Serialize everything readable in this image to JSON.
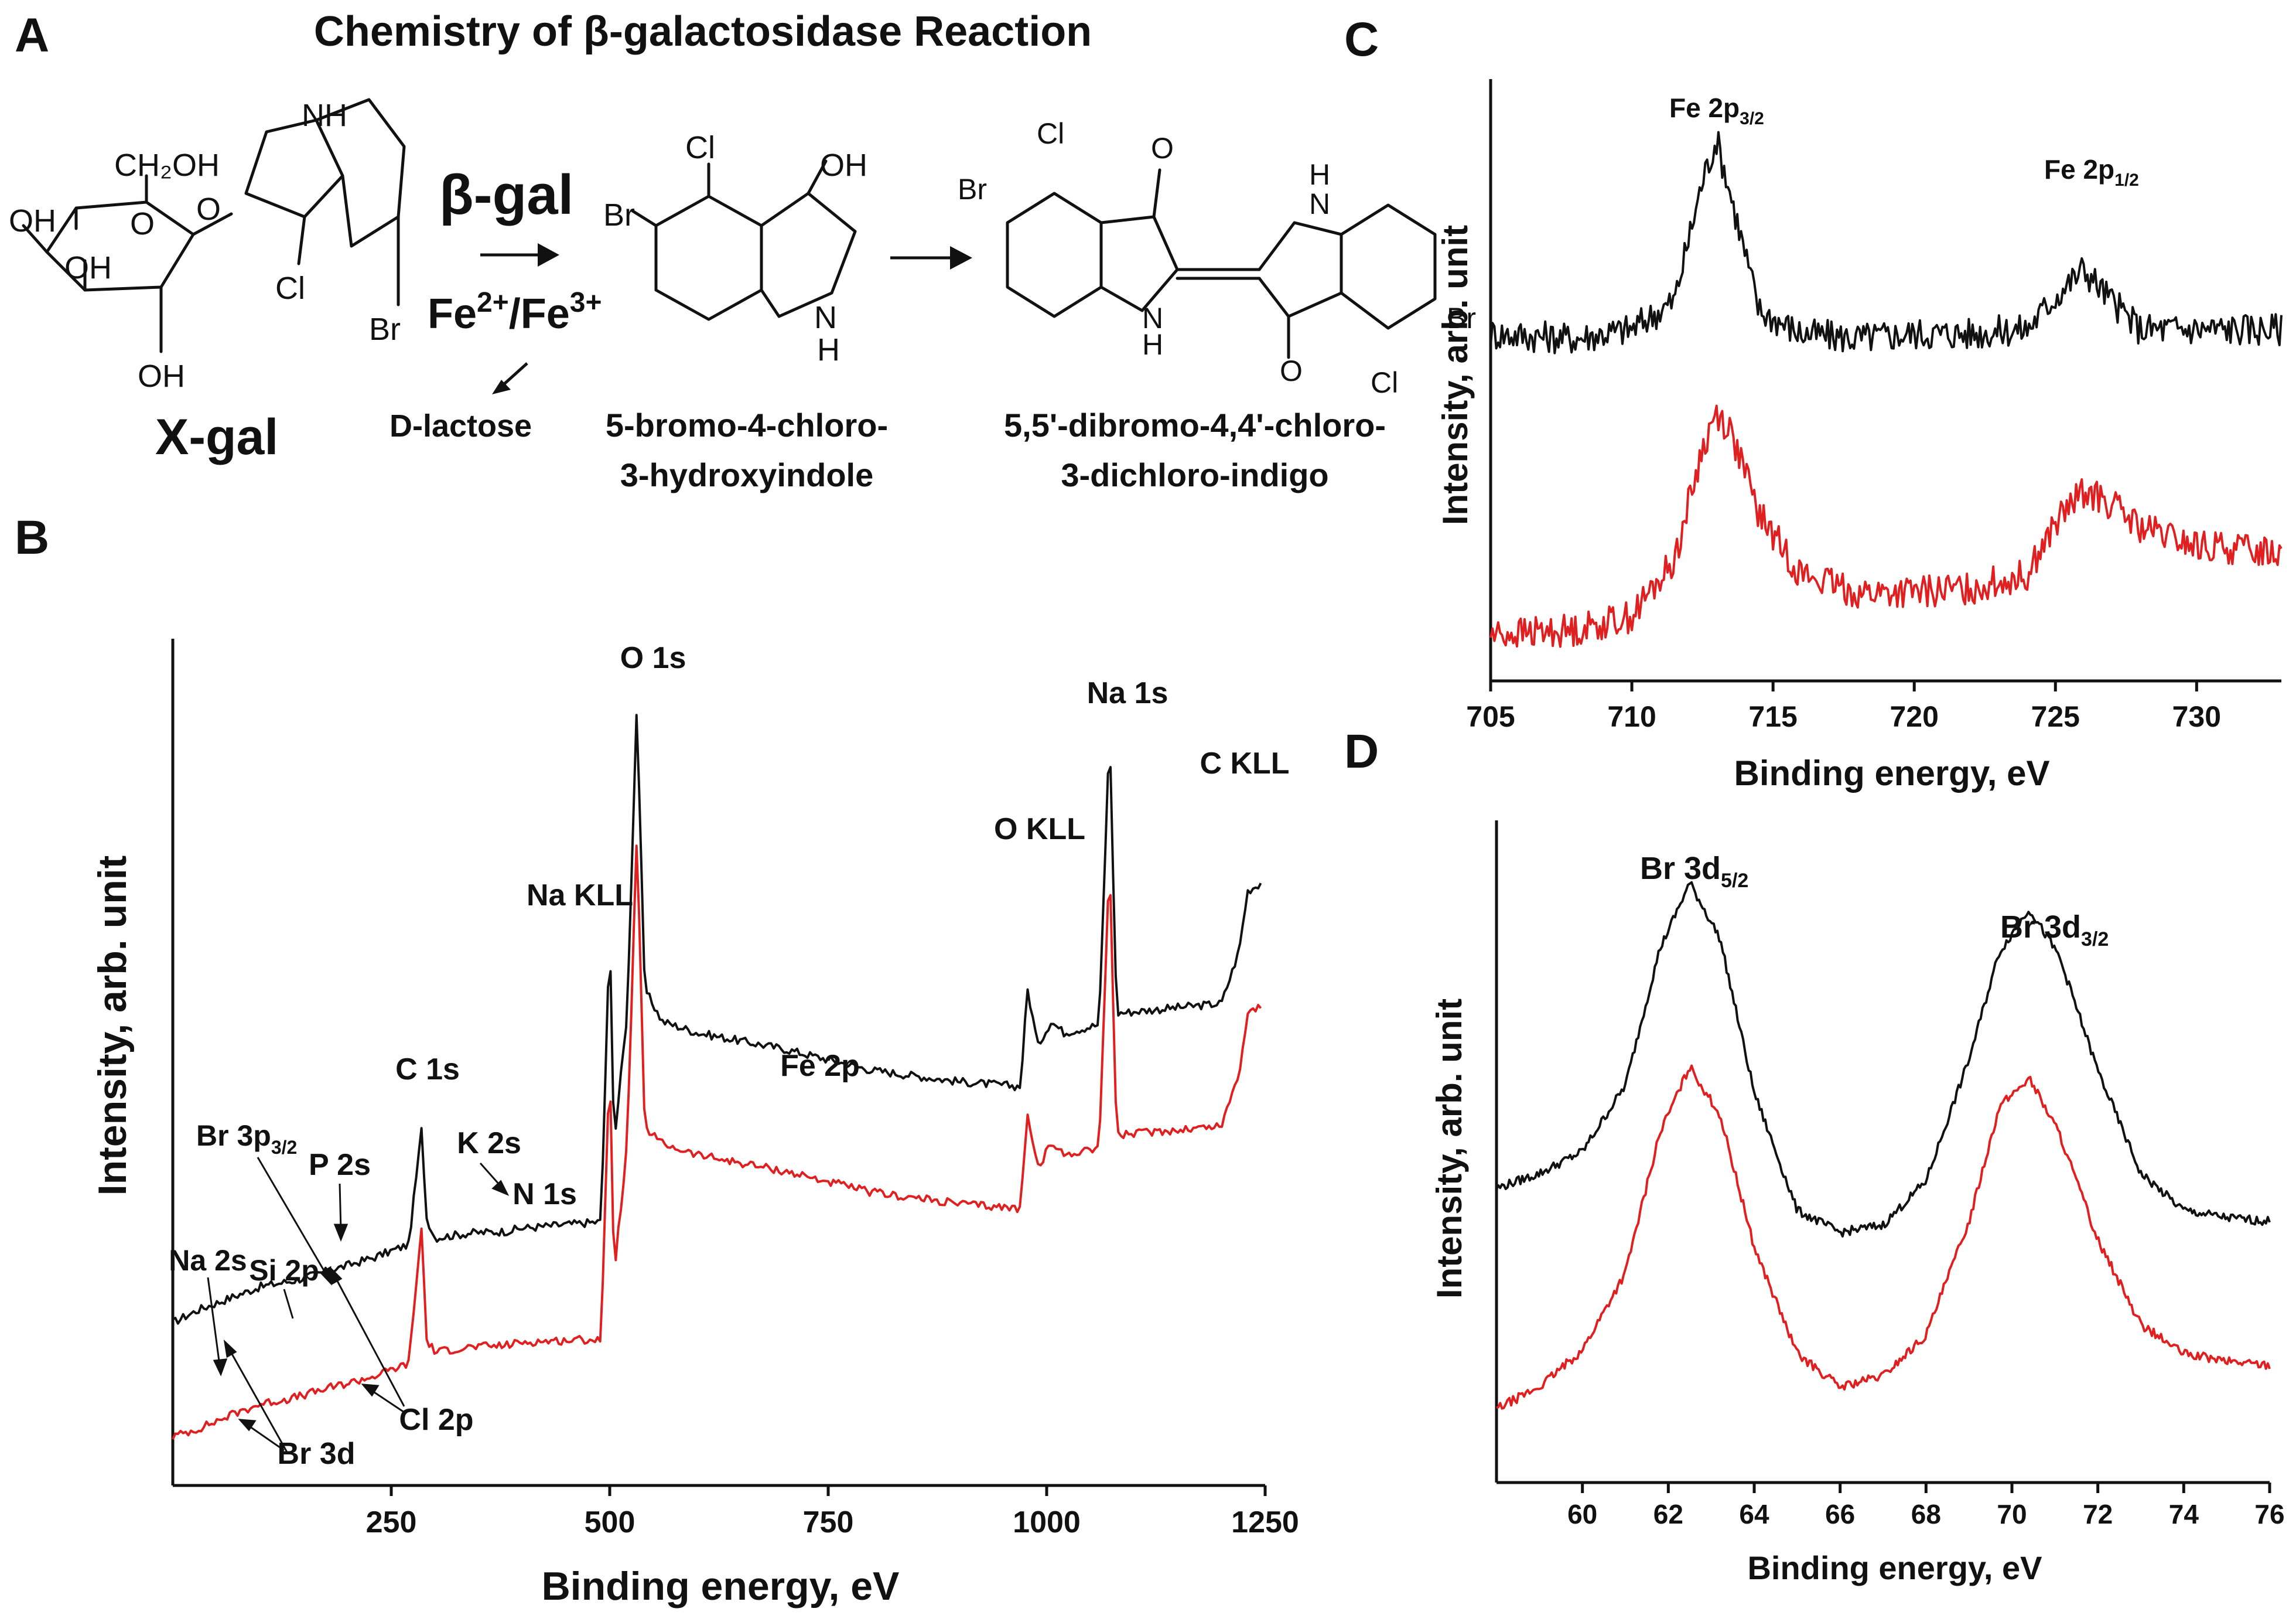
{
  "panel_labels": [
    "A",
    "B",
    "C",
    "D"
  ],
  "panel_a": {
    "title": "Chemistry of β-galactosidase Reaction",
    "enzyme": "β-gal",
    "cofactor_base": "Fe",
    "cofactor_sup1": "2+",
    "cofactor_mid": "/Fe",
    "cofactor_sup2": "3+",
    "byproduct": "D-lactose",
    "substrate": "X-gal",
    "intermediate_line1": "5-bromo-4-chloro-",
    "intermediate_line2": "3-hydroxyindole",
    "product_line1": "5,5'-dibromo-4,4'-chloro-",
    "product_line2": "3-dichloro-indigo",
    "atoms": {
      "nh": "NH",
      "ch2oh": "CH₂OH",
      "oh": "OH",
      "o": "O",
      "cl": "Cl",
      "br": "Br",
      "n": "N",
      "h": "H"
    }
  },
  "colors": {
    "black_series": "#111111",
    "red_series": "#e02020"
  },
  "chart_data": [
    {
      "id": "B",
      "type": "line",
      "xlabel": "Binding energy, eV",
      "ylabel": "Intensity, arb. unit",
      "xlim": [
        0,
        1250
      ],
      "xticks": [
        250,
        500,
        750,
        1000,
        1250
      ],
      "series": [
        {
          "color": "#111111",
          "x": [
            0,
            30,
            70,
            100,
            140,
            180,
            230,
            270,
            285,
            290,
            300,
            340,
            380,
            400,
            490,
            500,
            505,
            520,
            531,
            540,
            560,
            600,
            700,
            800,
            900,
            970,
            978,
            990,
            1005,
            1020,
            1060,
            1072,
            1080,
            1120,
            1200,
            1220,
            1230,
            1245
          ],
          "y": [
            2.0,
            2.8,
            3.6,
            4.2,
            4.6,
            5.2,
            6.0,
            6.8,
            14.0,
            8.5,
            7.2,
            7.5,
            7.6,
            7.8,
            8.2,
            26.0,
            13.0,
            21.0,
            40.0,
            22.5,
            20.5,
            19.8,
            18.8,
            17.5,
            16.8,
            16.5,
            22.5,
            19.0,
            20.5,
            19.8,
            20.3,
            38.5,
            21.0,
            21.2,
            21.6,
            24.8,
            28.5,
            29.0
          ]
        },
        {
          "color": "#e02020",
          "x": [
            0,
            30,
            70,
            100,
            140,
            180,
            230,
            270,
            285,
            290,
            300,
            340,
            380,
            400,
            490,
            500,
            505,
            520,
            531,
            540,
            560,
            600,
            700,
            800,
            900,
            970,
            978,
            990,
            1005,
            1020,
            1060,
            1072,
            1080,
            1120,
            1200,
            1220,
            1230,
            1245
          ],
          "y": [
            -5.0,
            -4.5,
            -3.6,
            -3.0,
            -2.6,
            -2.0,
            -1.3,
            -0.5,
            8.0,
            1.0,
            0.2,
            0.5,
            0.6,
            0.8,
            1.0,
            18.0,
            5.0,
            13.0,
            32.0,
            14.0,
            13.0,
            12.3,
            11.3,
            10.0,
            9.3,
            9.0,
            15.0,
            11.5,
            13.0,
            12.3,
            12.8,
            30.5,
            13.5,
            13.7,
            14.1,
            17.3,
            21.0,
            21.5
          ]
        }
      ],
      "annotations": {
        "o1s": "O 1s",
        "na1s": "Na 1s",
        "ckll": "C KLL",
        "okll": "O KLL",
        "nakll": "Na KLL",
        "c1s": "C 1s",
        "fe2p": "Fe 2p",
        "k2s": "K 2s",
        "n1s": "N 1s",
        "p2s": "P 2s",
        "br3p": "Br 3p",
        "br3p_sub": "3/2",
        "na2s": "Na 2s",
        "si2p": "Si 2p",
        "cl2p": "Cl 2p",
        "br3d": "Br 3d"
      }
    },
    {
      "id": "C",
      "type": "line",
      "xlabel": "Binding energy, eV",
      "ylabel": "Intensity, arb. unit",
      "xlim": [
        705,
        733
      ],
      "xticks": [
        705,
        710,
        715,
        720,
        725,
        730
      ],
      "series": [
        {
          "color": "#111111",
          "x": [
            705,
            708,
            710,
            711.5,
            712.5,
            713,
            713.5,
            714.5,
            716,
            718,
            720,
            722,
            724,
            725,
            726,
            727,
            728,
            730,
            733
          ],
          "y": [
            7.5,
            7.4,
            7.6,
            8.2,
            10.8,
            11.7,
            10.5,
            8.0,
            7.5,
            7.4,
            7.5,
            7.5,
            7.6,
            8.3,
            8.9,
            8.2,
            7.6,
            7.6,
            7.6
          ]
        },
        {
          "color": "#e02020",
          "x": [
            705,
            708,
            710,
            711.5,
            712.5,
            713,
            713.5,
            714.5,
            716,
            718,
            720,
            722,
            724,
            725,
            726,
            727,
            728,
            730,
            733
          ],
          "y": [
            1.0,
            1.1,
            1.4,
            2.6,
            5.0,
            5.8,
            5.4,
            3.6,
            2.3,
            1.9,
            1.9,
            2.0,
            2.3,
            3.4,
            4.1,
            3.8,
            3.3,
            2.9,
            2.8
          ]
        }
      ],
      "annotations": {
        "peak1": "Fe 2p",
        "peak1_sub": "3/2",
        "peak2": "Fe 2p",
        "peak2_sub": "1/2"
      }
    },
    {
      "id": "D",
      "type": "line",
      "xlabel": "Binding energy, eV",
      "ylabel": "Intensity, arb. unit",
      "xlim": [
        58,
        76
      ],
      "xticks": [
        60,
        62,
        64,
        66,
        68,
        70,
        72,
        74,
        76
      ],
      "series": [
        {
          "color": "#111111",
          "x": [
            58,
            59,
            60,
            61,
            61.8,
            62.5,
            63.2,
            64,
            65,
            66,
            67,
            68,
            69,
            69.7,
            70.4,
            71.1,
            72,
            73,
            74,
            75,
            76
          ],
          "y": [
            7.0,
            7.4,
            8.0,
            9.8,
            13.5,
            15.3,
            13.8,
            9.6,
            6.4,
            5.8,
            6.0,
            7.2,
            10.5,
            13.4,
            14.6,
            13.3,
            10.2,
            7.4,
            6.4,
            6.2,
            6.1
          ]
        },
        {
          "color": "#e02020",
          "x": [
            58,
            59,
            60,
            61,
            61.8,
            62.5,
            63.2,
            64,
            65,
            66,
            67,
            68,
            69,
            69.7,
            70.4,
            71.1,
            72,
            73,
            74,
            75,
            76
          ],
          "y": [
            1.0,
            1.6,
            2.6,
            4.7,
            8.5,
            10.3,
            9.0,
            5.4,
            2.5,
            1.6,
            1.9,
            3.0,
            6.1,
            9.2,
            10.0,
            8.5,
            5.6,
            3.3,
            2.5,
            2.3,
            2.2
          ]
        }
      ],
      "annotations": {
        "peak1": "Br 3d",
        "peak1_sub": "5/2",
        "peak2": "Br 3d",
        "peak2_sub": "3/2"
      }
    }
  ]
}
